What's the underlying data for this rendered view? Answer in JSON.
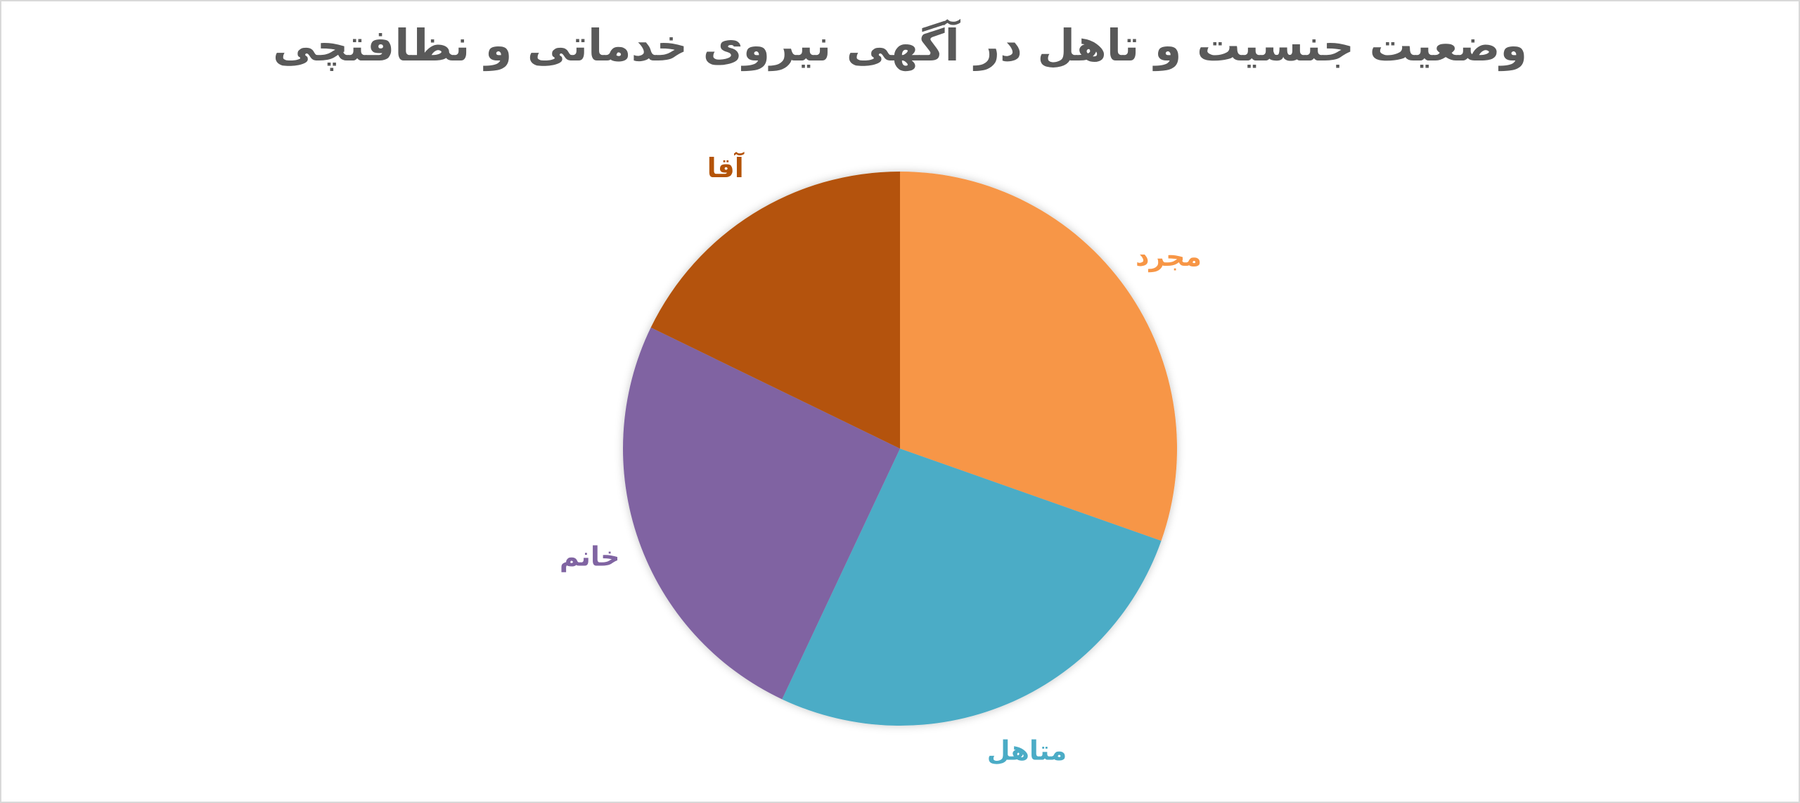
{
  "chart_data": {
    "type": "pie",
    "title": "وضعیت جنسیت و تاهل در آگهی نیروی خدماتی و نظافتچی",
    "categories": [
      "مجرد",
      "متاهل",
      "خانم",
      "آقا"
    ],
    "values": [
      30.4,
      26.6,
      25.2,
      17.8
    ],
    "colors": [
      "#F79646",
      "#4BACC6",
      "#8064A2",
      "#B45307"
    ],
    "start_angle_deg": 0,
    "direction": "clockwise",
    "legend": "none",
    "data_labels": "category-name-outside"
  }
}
